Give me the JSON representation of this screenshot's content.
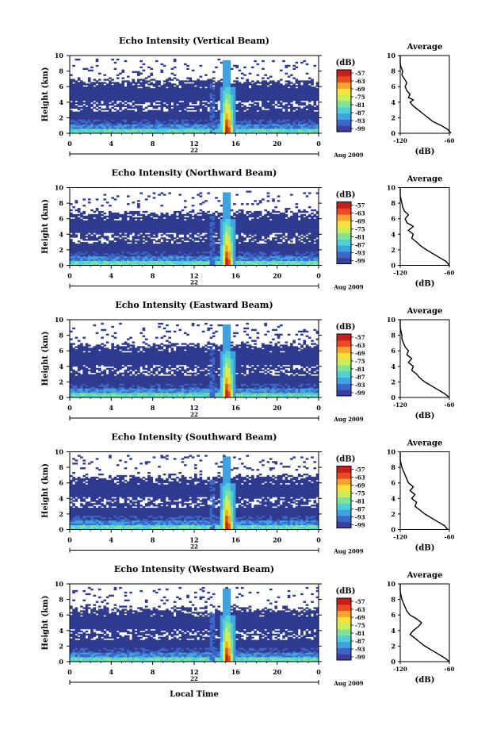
{
  "chart_data": [
    {
      "type": "heatmap",
      "title": "Echo Intensity (Vertical Beam)",
      "ylabel": "Height (km)",
      "xticks": [
        "0",
        "4",
        "8",
        "12",
        "16",
        "20",
        "0"
      ],
      "xlim": [
        0,
        24
      ],
      "ylim": [
        0,
        10
      ],
      "yticks": [
        "0",
        "2",
        "4",
        "6",
        "8",
        "10"
      ],
      "date_day": "22",
      "date_month_year": "Aug 2009",
      "colorbar": {
        "label": "(dB)",
        "ticks": [
          "-57",
          "-63",
          "-69",
          "-75",
          "-81",
          "-87",
          "-93",
          "-99"
        ]
      },
      "average": {
        "title": "Average",
        "xlabel": "(dB)",
        "xticks": [
          "-120",
          "-60"
        ],
        "xlim": [
          -120,
          -60
        ],
        "profile": [
          [
            0,
            -58
          ],
          [
            0.5,
            -62
          ],
          [
            1,
            -70
          ],
          [
            1.5,
            -80
          ],
          [
            2,
            -86
          ],
          [
            2.5,
            -92
          ],
          [
            3,
            -98
          ],
          [
            3.5,
            -104
          ],
          [
            4,
            -108
          ],
          [
            4.3,
            -104
          ],
          [
            4.6,
            -110
          ],
          [
            5,
            -108
          ],
          [
            5.5,
            -112
          ],
          [
            6,
            -114
          ],
          [
            6.5,
            -112
          ],
          [
            7,
            -115
          ],
          [
            7.5,
            -118
          ],
          [
            8,
            -117
          ],
          [
            8.5,
            -119
          ],
          [
            9,
            -120
          ],
          [
            10,
            -120
          ]
        ]
      }
    },
    {
      "type": "heatmap",
      "title": "Echo Intensity (Northward Beam)",
      "ylabel": "Height (km)",
      "xticks": [
        "0",
        "4",
        "8",
        "12",
        "16",
        "20",
        "0"
      ],
      "xlim": [
        0,
        24
      ],
      "ylim": [
        0,
        10
      ],
      "yticks": [
        "0",
        "2",
        "4",
        "6",
        "8",
        "10"
      ],
      "date_day": "22",
      "date_month_year": "Aug 2009",
      "colorbar": {
        "label": "(dB)",
        "ticks": [
          "-57",
          "-63",
          "-69",
          "-75",
          "-81",
          "-87",
          "-93",
          "-99"
        ]
      },
      "average": {
        "title": "Average",
        "xlabel": "(dB)",
        "xticks": [
          "-120",
          "-60"
        ],
        "xlim": [
          -120,
          -60
        ],
        "profile": [
          [
            0,
            -60
          ],
          [
            0.5,
            -64
          ],
          [
            1,
            -72
          ],
          [
            1.5,
            -80
          ],
          [
            2,
            -88
          ],
          [
            2.5,
            -95
          ],
          [
            3,
            -100
          ],
          [
            3.5,
            -106
          ],
          [
            4,
            -104
          ],
          [
            4.5,
            -110
          ],
          [
            5,
            -104
          ],
          [
            5.5,
            -112
          ],
          [
            6,
            -114
          ],
          [
            6.5,
            -110
          ],
          [
            7,
            -115
          ],
          [
            7.5,
            -117
          ],
          [
            8,
            -118
          ],
          [
            8.5,
            -119
          ],
          [
            9,
            -120
          ],
          [
            10,
            -120
          ]
        ]
      }
    },
    {
      "type": "heatmap",
      "title": "Echo Intensity (Eastward Beam)",
      "ylabel": "Height (km)",
      "xticks": [
        "0",
        "4",
        "8",
        "12",
        "16",
        "20",
        "0"
      ],
      "xlim": [
        0,
        24
      ],
      "ylim": [
        0,
        10
      ],
      "yticks": [
        "0",
        "2",
        "4",
        "6",
        "8",
        "10"
      ],
      "date_day": "22",
      "date_month_year": "Aug 2009",
      "colorbar": {
        "label": "(dB)",
        "ticks": [
          "-57",
          "-63",
          "-69",
          "-75",
          "-81",
          "-87",
          "-93",
          "-99"
        ]
      },
      "average": {
        "title": "Average",
        "xlabel": "(dB)",
        "xticks": [
          "-120",
          "-60"
        ],
        "xlim": [
          -120,
          -60
        ],
        "profile": [
          [
            0,
            -60
          ],
          [
            0.5,
            -66
          ],
          [
            1,
            -74
          ],
          [
            1.5,
            -82
          ],
          [
            2,
            -90
          ],
          [
            2.5,
            -96
          ],
          [
            3,
            -100
          ],
          [
            3.5,
            -106
          ],
          [
            4,
            -104
          ],
          [
            4.5,
            -110
          ],
          [
            5,
            -106
          ],
          [
            5.5,
            -112
          ],
          [
            6,
            -110
          ],
          [
            6.5,
            -114
          ],
          [
            7,
            -116
          ],
          [
            7.5,
            -118
          ],
          [
            8,
            -118
          ],
          [
            8.5,
            -119
          ],
          [
            9,
            -120
          ],
          [
            10,
            -120
          ]
        ]
      }
    },
    {
      "type": "heatmap",
      "title": "Echo Intensity (Southward Beam)",
      "ylabel": "Height (km)",
      "xticks": [
        "0",
        "4",
        "8",
        "12",
        "16",
        "20",
        "0"
      ],
      "xlim": [
        0,
        24
      ],
      "ylim": [
        0,
        10
      ],
      "yticks": [
        "0",
        "2",
        "4",
        "6",
        "8",
        "10"
      ],
      "date_day": "22",
      "date_month_year": "Aug 2009",
      "colorbar": {
        "label": "(dB)",
        "ticks": [
          "-57",
          "-63",
          "-69",
          "-75",
          "-81",
          "-87",
          "-93",
          "-99"
        ]
      },
      "average": {
        "title": "Average",
        "xlabel": "(dB)",
        "xticks": [
          "-120",
          "-60"
        ],
        "xlim": [
          -120,
          -60
        ],
        "profile": [
          [
            0,
            -62
          ],
          [
            0.5,
            -66
          ],
          [
            1,
            -74
          ],
          [
            1.5,
            -82
          ],
          [
            2,
            -90
          ],
          [
            2.5,
            -96
          ],
          [
            3,
            -102
          ],
          [
            3.5,
            -100
          ],
          [
            4,
            -106
          ],
          [
            4.5,
            -102
          ],
          [
            5,
            -108
          ],
          [
            5.5,
            -104
          ],
          [
            6,
            -110
          ],
          [
            6.5,
            -112
          ],
          [
            7,
            -114
          ],
          [
            7.5,
            -116
          ],
          [
            8,
            -118
          ],
          [
            8.5,
            -119
          ],
          [
            9,
            -120
          ],
          [
            10,
            -120
          ]
        ]
      }
    },
    {
      "type": "heatmap",
      "title": "Echo Intensity (Westward Beam)",
      "ylabel": "Height (km)",
      "xlabel": "Local Time",
      "xticks": [
        "0",
        "4",
        "8",
        "12",
        "16",
        "20",
        "0"
      ],
      "xlim": [
        0,
        24
      ],
      "ylim": [
        0,
        10
      ],
      "yticks": [
        "0",
        "2",
        "4",
        "6",
        "8",
        "10"
      ],
      "date_day": "22",
      "date_month_year": "Aug 2009",
      "colorbar": {
        "label": "(dB)",
        "ticks": [
          "-57",
          "-63",
          "-69",
          "-75",
          "-81",
          "-87",
          "-93",
          "-99"
        ]
      },
      "average": {
        "title": "Average",
        "xlabel": "(dB)",
        "xticks": [
          "-120",
          "-60"
        ],
        "xlim": [
          -120,
          -60
        ],
        "profile": [
          [
            0,
            -60
          ],
          [
            0.5,
            -66
          ],
          [
            1,
            -74
          ],
          [
            1.5,
            -82
          ],
          [
            2,
            -90
          ],
          [
            2.5,
            -96
          ],
          [
            3,
            -102
          ],
          [
            3.5,
            -108
          ],
          [
            4,
            -104
          ],
          [
            4.5,
            -98
          ],
          [
            5,
            -94
          ],
          [
            5.5,
            -100
          ],
          [
            6,
            -108
          ],
          [
            6.5,
            -112
          ],
          [
            7,
            -114
          ],
          [
            7.5,
            -116
          ],
          [
            8,
            -118
          ],
          [
            8.5,
            -119
          ],
          [
            9,
            -120
          ],
          [
            10,
            -120
          ]
        ]
      }
    }
  ],
  "colors": {
    "background_echo": "#2f3b8f",
    "colormap": [
      "#3b3f9e",
      "#3d66c9",
      "#3fa3e0",
      "#4fd0d8",
      "#7fe39a",
      "#c9ee5c",
      "#f5e23a",
      "#f7a52b",
      "#ee4a22",
      "#c81e1e"
    ]
  }
}
